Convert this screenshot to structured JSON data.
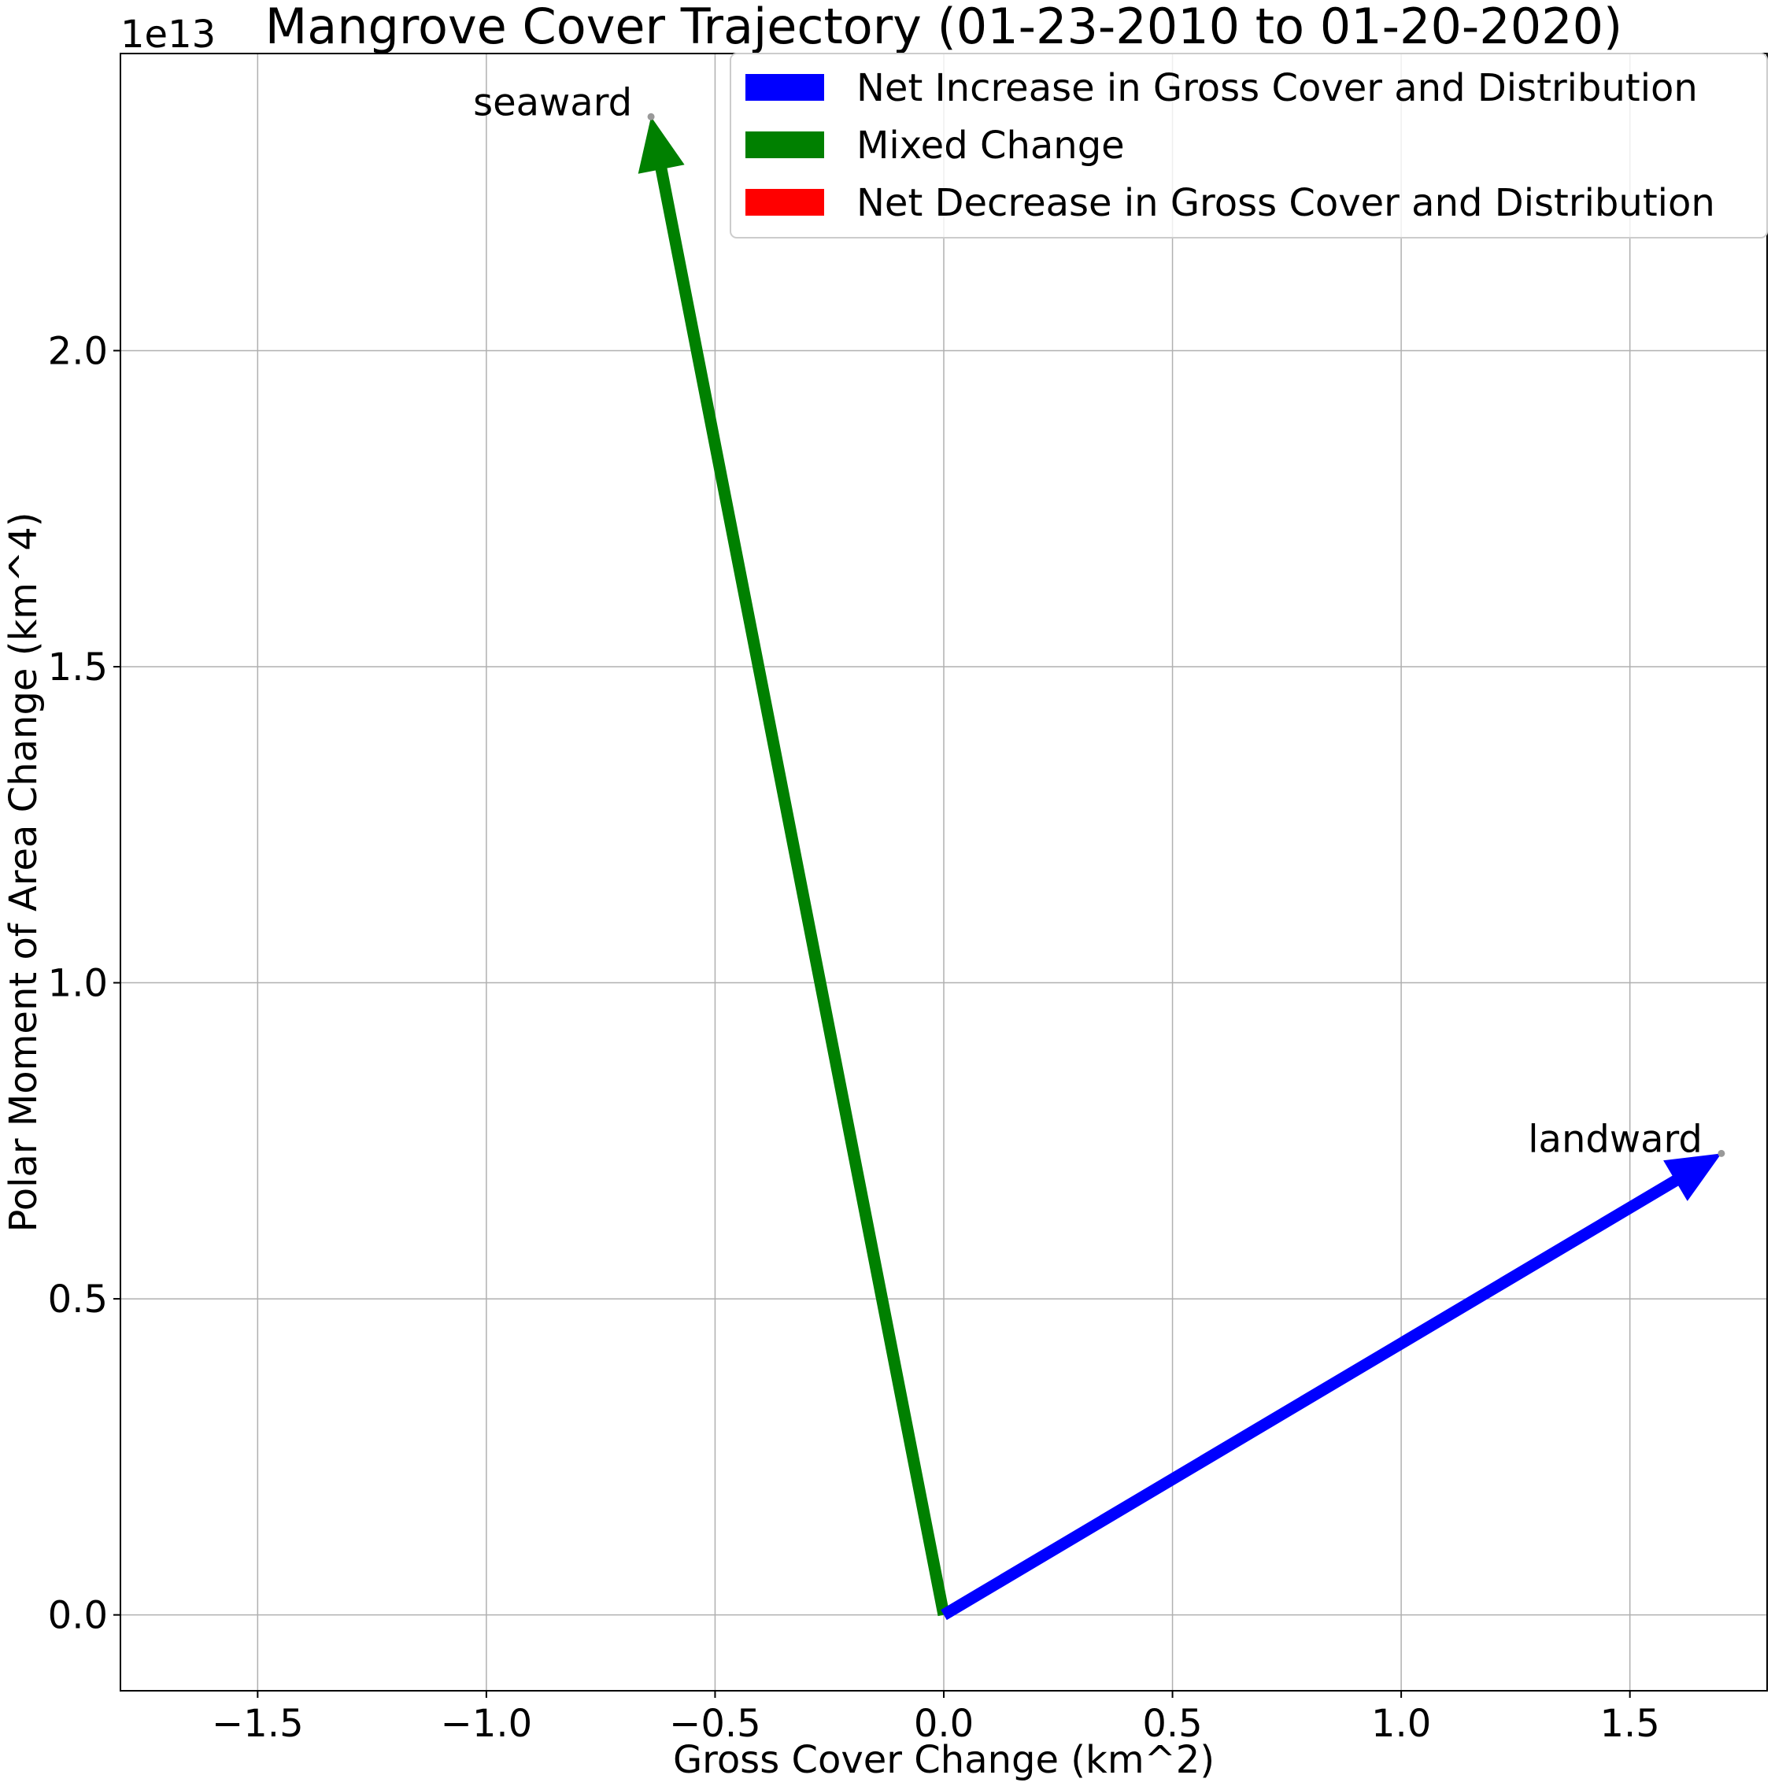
{
  "chart_data": {
    "type": "quiver",
    "title": "Mangrove Cover Trajectory (01-23-2010 to 01-20-2020)",
    "xlabel": "Gross Cover Change (km^2)",
    "ylabel": "Polar Moment of Area Change (km^4)",
    "y_offset_label": "1e13",
    "xlim": [
      -1.8,
      1.8
    ],
    "ylim": [
      -0.12,
      2.47
    ],
    "x_ticks": [
      -1.5,
      -1.0,
      -0.5,
      0.0,
      0.5,
      1.0,
      1.5
    ],
    "x_tick_labels": [
      "−1.5",
      "−1.0",
      "−0.5",
      "0.0",
      "0.5",
      "1.0",
      "1.5"
    ],
    "y_ticks": [
      0.0,
      0.5,
      1.0,
      1.5,
      2.0
    ],
    "y_tick_labels": [
      "0.0",
      "0.5",
      "1.0",
      "1.5",
      "2.0"
    ],
    "grid": true,
    "legend_position": "top-right",
    "legend": [
      {
        "label": "Net Increase in Gross Cover and Distribution",
        "color": "#0000ff"
      },
      {
        "label": "Mixed Change",
        "color": "#008000"
      },
      {
        "label": "Net Decrease in Gross Cover and Distribution",
        "color": "#ff0000"
      }
    ],
    "vectors": [
      {
        "label": "seaward",
        "x0": 0.0,
        "y0": 0.0,
        "x1": -0.64,
        "y1": 2.37,
        "color": "#008000"
      },
      {
        "label": "landward",
        "x0": 0.0,
        "y0": 0.0,
        "x1": 1.7,
        "y1": 0.73,
        "color": "#0000ff"
      }
    ]
  }
}
